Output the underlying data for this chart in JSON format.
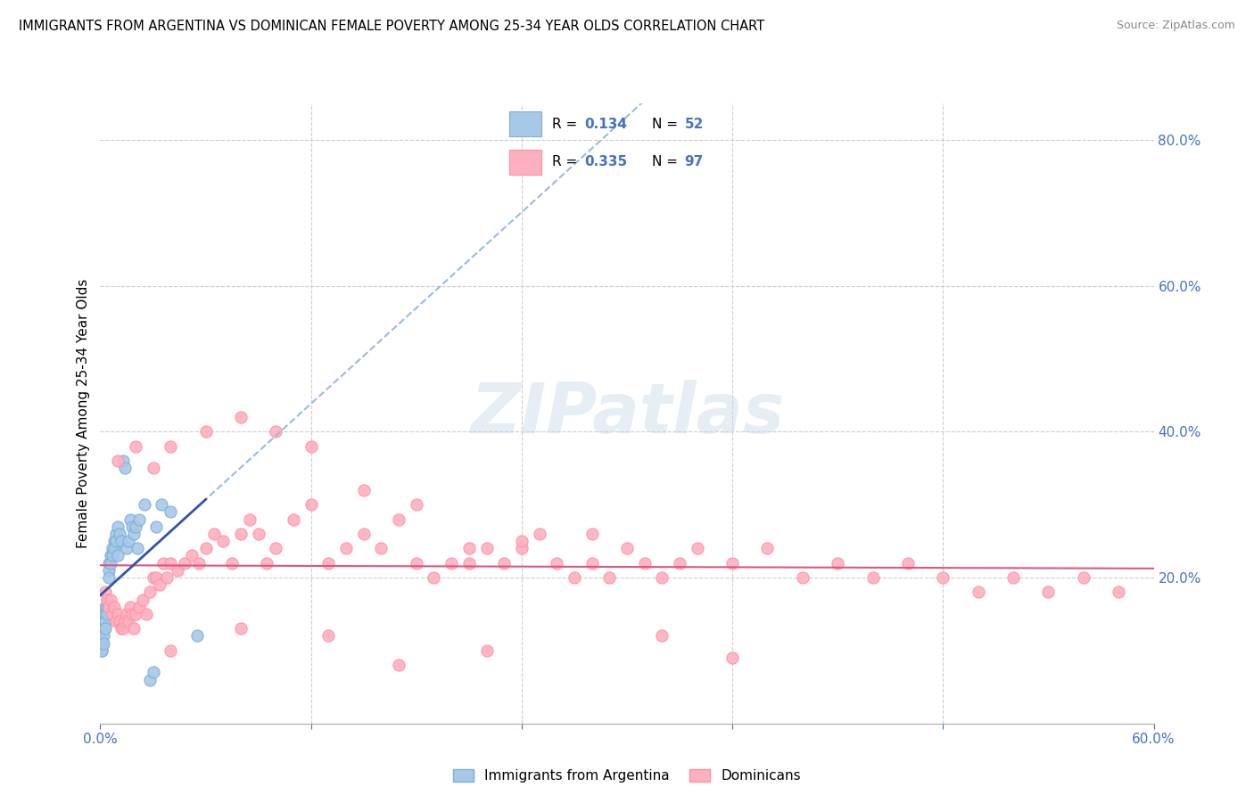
{
  "title": "IMMIGRANTS FROM ARGENTINA VS DOMINICAN FEMALE POVERTY AMONG 25-34 YEAR OLDS CORRELATION CHART",
  "source": "Source: ZipAtlas.com",
  "ylabel": "Female Poverty Among 25-34 Year Olds",
  "xlim": [
    0.0,
    0.6
  ],
  "ylim": [
    0.0,
    0.85
  ],
  "x_ticks": [
    0.0,
    0.12,
    0.24,
    0.36,
    0.48,
    0.6
  ],
  "x_tick_labels": [
    "0.0%",
    "",
    "",
    "",
    "",
    "60.0%"
  ],
  "y_ticks_right": [
    0.0,
    0.2,
    0.4,
    0.6,
    0.8
  ],
  "y_tick_labels_right": [
    "",
    "20.0%",
    "40.0%",
    "60.0%",
    "80.0%"
  ],
  "argentina_color": "#A8C8E8",
  "dominican_color": "#FFB0C0",
  "argentina_edge": "#7AAFD4",
  "dominican_edge": "#FF8FA0",
  "argentina_R": 0.134,
  "argentina_N": 52,
  "dominican_R": 0.335,
  "dominican_N": 97,
  "watermark": "ZIPatlas",
  "legend_R_color": "#4472C4",
  "legend_N_color": "#4472C4",
  "argentina_x": [
    0.001,
    0.001,
    0.001,
    0.001,
    0.001,
    0.001,
    0.001,
    0.001,
    0.002,
    0.002,
    0.002,
    0.002,
    0.002,
    0.003,
    0.003,
    0.003,
    0.003,
    0.004,
    0.004,
    0.004,
    0.005,
    0.005,
    0.005,
    0.006,
    0.006,
    0.007,
    0.007,
    0.008,
    0.008,
    0.009,
    0.009,
    0.01,
    0.01,
    0.011,
    0.012,
    0.013,
    0.014,
    0.015,
    0.016,
    0.017,
    0.018,
    0.019,
    0.02,
    0.021,
    0.022,
    0.025,
    0.028,
    0.03,
    0.032,
    0.035,
    0.04,
    0.055
  ],
  "argentina_y": [
    0.14,
    0.13,
    0.12,
    0.12,
    0.11,
    0.11,
    0.1,
    0.1,
    0.15,
    0.14,
    0.13,
    0.12,
    0.11,
    0.16,
    0.15,
    0.14,
    0.13,
    0.17,
    0.16,
    0.15,
    0.22,
    0.21,
    0.2,
    0.23,
    0.22,
    0.24,
    0.23,
    0.25,
    0.24,
    0.26,
    0.25,
    0.27,
    0.23,
    0.26,
    0.25,
    0.36,
    0.35,
    0.24,
    0.25,
    0.28,
    0.27,
    0.26,
    0.27,
    0.24,
    0.28,
    0.3,
    0.06,
    0.07,
    0.27,
    0.3,
    0.29,
    0.12
  ],
  "dominican_x": [
    0.003,
    0.004,
    0.005,
    0.006,
    0.007,
    0.008,
    0.009,
    0.01,
    0.011,
    0.012,
    0.013,
    0.014,
    0.015,
    0.016,
    0.017,
    0.018,
    0.019,
    0.02,
    0.022,
    0.024,
    0.026,
    0.028,
    0.03,
    0.032,
    0.034,
    0.036,
    0.038,
    0.04,
    0.044,
    0.048,
    0.052,
    0.056,
    0.06,
    0.065,
    0.07,
    0.075,
    0.08,
    0.085,
    0.09,
    0.095,
    0.1,
    0.11,
    0.12,
    0.13,
    0.14,
    0.15,
    0.16,
    0.17,
    0.18,
    0.19,
    0.2,
    0.21,
    0.22,
    0.23,
    0.24,
    0.25,
    0.26,
    0.27,
    0.28,
    0.29,
    0.3,
    0.31,
    0.32,
    0.33,
    0.34,
    0.36,
    0.38,
    0.4,
    0.42,
    0.44,
    0.46,
    0.48,
    0.5,
    0.52,
    0.54,
    0.56,
    0.58,
    0.01,
    0.02,
    0.03,
    0.04,
    0.06,
    0.08,
    0.1,
    0.12,
    0.15,
    0.18,
    0.21,
    0.24,
    0.28,
    0.32,
    0.36,
    0.04,
    0.08,
    0.13,
    0.17,
    0.22
  ],
  "dominican_y": [
    0.18,
    0.17,
    0.16,
    0.17,
    0.15,
    0.16,
    0.14,
    0.15,
    0.14,
    0.13,
    0.13,
    0.14,
    0.15,
    0.14,
    0.16,
    0.15,
    0.13,
    0.15,
    0.16,
    0.17,
    0.15,
    0.18,
    0.2,
    0.2,
    0.19,
    0.22,
    0.2,
    0.22,
    0.21,
    0.22,
    0.23,
    0.22,
    0.24,
    0.26,
    0.25,
    0.22,
    0.26,
    0.28,
    0.26,
    0.22,
    0.24,
    0.28,
    0.3,
    0.22,
    0.24,
    0.26,
    0.24,
    0.28,
    0.22,
    0.2,
    0.22,
    0.24,
    0.24,
    0.22,
    0.24,
    0.26,
    0.22,
    0.2,
    0.22,
    0.2,
    0.24,
    0.22,
    0.2,
    0.22,
    0.24,
    0.22,
    0.24,
    0.2,
    0.22,
    0.2,
    0.22,
    0.2,
    0.18,
    0.2,
    0.18,
    0.2,
    0.18,
    0.36,
    0.38,
    0.35,
    0.38,
    0.4,
    0.42,
    0.4,
    0.38,
    0.32,
    0.3,
    0.22,
    0.25,
    0.26,
    0.12,
    0.09,
    0.1,
    0.13,
    0.12,
    0.08,
    0.1
  ]
}
